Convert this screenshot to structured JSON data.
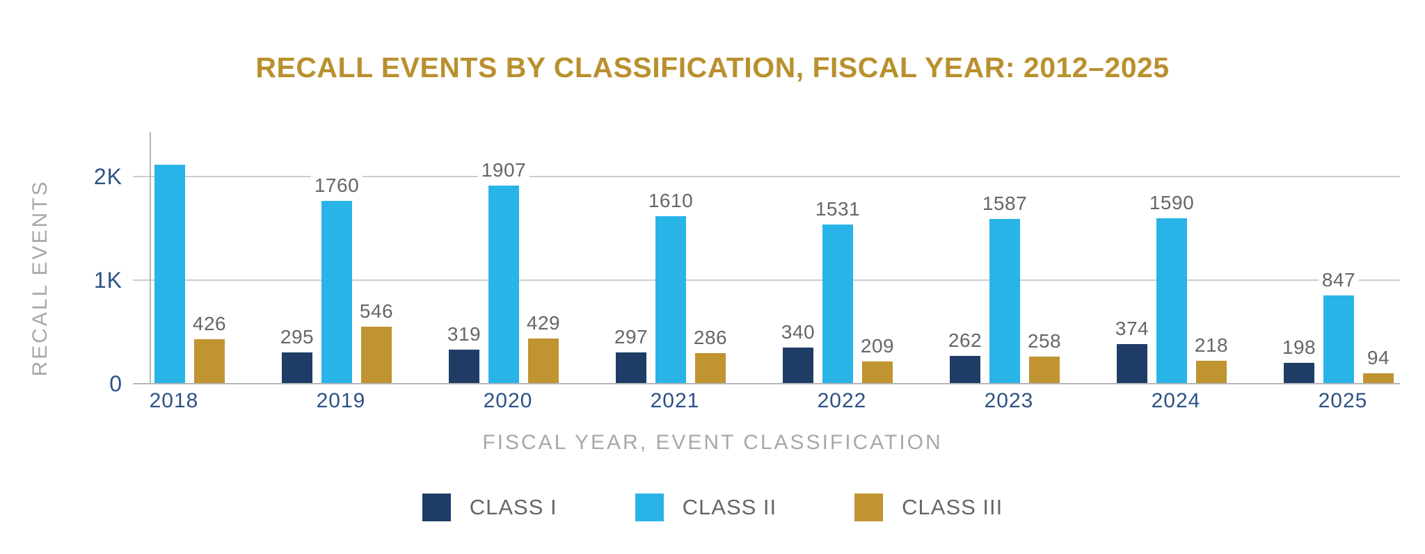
{
  "chart_data": {
    "type": "bar",
    "title": "RECALL EVENTS BY CLASSIFICATION, FISCAL YEAR: 2012–2025",
    "xlabel": "FISCAL YEAR, EVENT CLASSIFICATION",
    "ylabel": "RECALL EVENTS",
    "categories": [
      "2018",
      "2019",
      "2020",
      "2021",
      "2022",
      "2023",
      "2024",
      "2025"
    ],
    "series": [
      {
        "name": "CLASS I",
        "color": "#1F3C66",
        "values": [
          null,
          295,
          319,
          297,
          340,
          262,
          374,
          198
        ],
        "labels": [
          "",
          "295",
          "319",
          "297",
          "340",
          "262",
          "374",
          "198"
        ]
      },
      {
        "name": "CLASS II",
        "color": "#29B4E8",
        "values": [
          2110,
          1760,
          1907,
          1610,
          1531,
          1587,
          1590,
          847
        ],
        "labels": [
          "",
          "1760",
          "1907",
          "1610",
          "1531",
          "1587",
          "1590",
          "847"
        ]
      },
      {
        "name": "CLASS III",
        "color": "#BF9431",
        "values": [
          426,
          546,
          429,
          286,
          209,
          258,
          218,
          94
        ],
        "labels": [
          "426",
          "546",
          "429",
          "286",
          "209",
          "258",
          "218",
          "94"
        ]
      }
    ],
    "y_axis": {
      "ticks": [
        {
          "value": 0,
          "label": "0"
        },
        {
          "value": 1000,
          "label": "1K"
        },
        {
          "value": 2000,
          "label": "2K"
        }
      ],
      "max": 2430
    },
    "legend": {
      "position": "bottom"
    },
    "grid": true
  },
  "colors": {
    "title": "#B9902E",
    "axis_titles": "#A6A8AB",
    "tick_labels": "#2D5285",
    "value_labels": "#63666A",
    "legend_labels": "#63666A",
    "gridline": "#CBCDD0",
    "axis_line": "#B3B5B8",
    "background": "#FFFFFF"
  }
}
